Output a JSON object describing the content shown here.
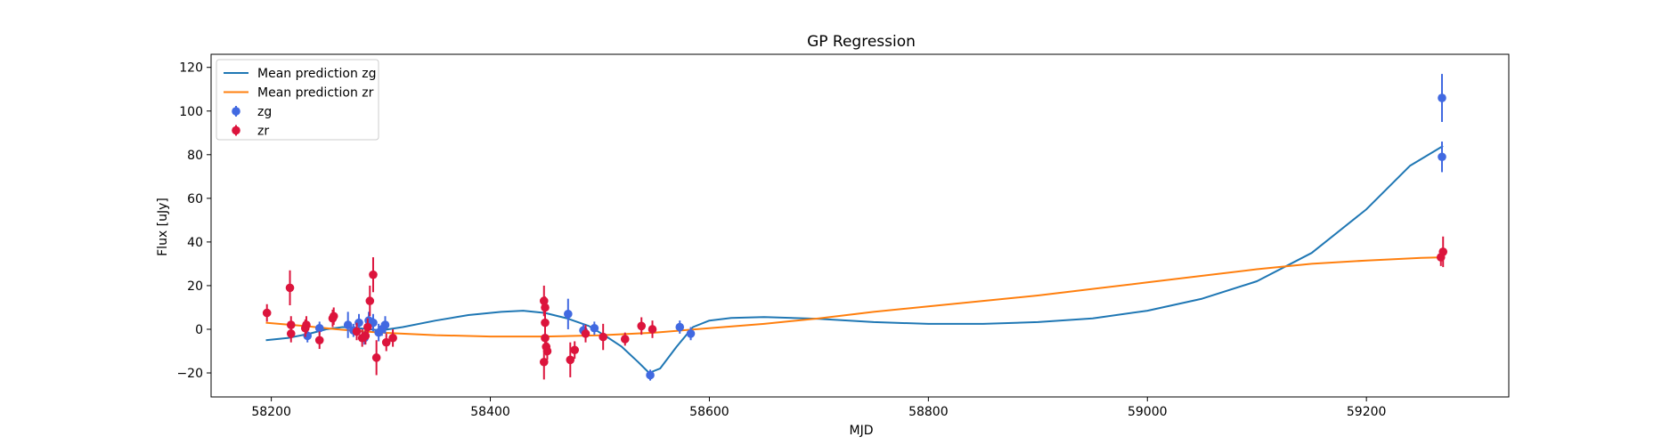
{
  "chart_data": {
    "type": "scatter",
    "title": "GP Regression",
    "xlabel": "MJD",
    "ylabel": "Flux [uJy]",
    "xlim": [
      58145,
      59330
    ],
    "ylim": [
      -31,
      126
    ],
    "x_ticks": [
      58200,
      58400,
      58600,
      58800,
      59000,
      59200
    ],
    "y_ticks": [
      -20,
      0,
      20,
      40,
      60,
      80,
      100,
      120
    ],
    "grid": false,
    "legend": {
      "location": "upper-left",
      "entries": [
        "Mean prediction zg",
        "Mean prediction zr",
        "zg",
        "zr"
      ]
    },
    "series": [
      {
        "name": "Mean prediction zg",
        "kind": "line",
        "color": "#1f77b4",
        "x": [
          58195,
          58215,
          58235,
          58250,
          58265,
          58280,
          58300,
          58320,
          58350,
          58380,
          58410,
          58430,
          58450,
          58470,
          58490,
          58505,
          58520,
          58535,
          58545,
          58555,
          58570,
          58585,
          58600,
          58620,
          58650,
          58700,
          58750,
          58800,
          58850,
          58900,
          58950,
          59000,
          59050,
          59100,
          59150,
          59200,
          59240,
          59270
        ],
        "y": [
          -5,
          -4,
          -2,
          0,
          1,
          0.5,
          -0.5,
          1,
          4,
          6.5,
          8,
          8.5,
          7.5,
          5,
          1.5,
          -3,
          -8,
          -15,
          -20,
          -18,
          -8,
          1,
          4,
          5.2,
          5.6,
          4.8,
          3.3,
          2.5,
          2.5,
          3.3,
          5,
          8.5,
          14,
          22,
          35,
          55,
          75,
          84
        ]
      },
      {
        "name": "Mean prediction zr",
        "kind": "line",
        "color": "#ff7f0e",
        "x": [
          58195,
          58230,
          58260,
          58300,
          58350,
          58400,
          58450,
          58500,
          58550,
          58600,
          58650,
          58700,
          58750,
          58800,
          58850,
          58900,
          58950,
          59000,
          59050,
          59100,
          59150,
          59200,
          59250,
          59270
        ],
        "y": [
          3,
          1.5,
          0,
          -1.5,
          -2.7,
          -3.3,
          -3.3,
          -2.8,
          -1.5,
          0.5,
          2.5,
          5,
          8,
          10.5,
          13,
          15.5,
          18.5,
          21.5,
          24.5,
          27.5,
          30,
          31.5,
          32.7,
          33
        ]
      },
      {
        "name": "zg",
        "kind": "errorbar",
        "color": "#4169e1",
        "points": [
          {
            "x": 58233,
            "y": -3,
            "err": 3
          },
          {
            "x": 58244,
            "y": 0.5,
            "err": 3
          },
          {
            "x": 58270,
            "y": 2,
            "err": 6
          },
          {
            "x": 58275,
            "y": -0.5,
            "err": 3
          },
          {
            "x": 58280,
            "y": 3,
            "err": 4
          },
          {
            "x": 58285,
            "y": -4,
            "err": 3
          },
          {
            "x": 58289,
            "y": 4,
            "err": 4
          },
          {
            "x": 58293,
            "y": 3,
            "err": 4
          },
          {
            "x": 58298,
            "y": -1.5,
            "err": 4
          },
          {
            "x": 58301,
            "y": 0,
            "err": 3
          },
          {
            "x": 58304,
            "y": 2,
            "err": 4
          },
          {
            "x": 58471,
            "y": 7,
            "err": 7
          },
          {
            "x": 58485,
            "y": -0.5,
            "err": 3
          },
          {
            "x": 58495,
            "y": 0.5,
            "err": 3
          },
          {
            "x": 58546,
            "y": -21,
            "err": 2.5
          },
          {
            "x": 58573,
            "y": 1,
            "err": 3
          },
          {
            "x": 58583,
            "y": -2,
            "err": 3
          },
          {
            "x": 59269,
            "y": 106,
            "err": 11
          },
          {
            "x": 59269,
            "y": 79,
            "err": 7
          }
        ]
      },
      {
        "name": "zr",
        "kind": "errorbar",
        "color": "#dc143c",
        "points": [
          {
            "x": 58196,
            "y": 7.5,
            "err": 4
          },
          {
            "x": 58217,
            "y": 19,
            "err": 8
          },
          {
            "x": 58218,
            "y": -2,
            "err": 4
          },
          {
            "x": 58218,
            "y": 2,
            "err": 4
          },
          {
            "x": 58231,
            "y": 0.5,
            "err": 4
          },
          {
            "x": 58232,
            "y": 2,
            "err": 4
          },
          {
            "x": 58244,
            "y": -5,
            "err": 4
          },
          {
            "x": 58256,
            "y": 5,
            "err": 4
          },
          {
            "x": 58257,
            "y": 6,
            "err": 4
          },
          {
            "x": 58278,
            "y": -1,
            "err": 4
          },
          {
            "x": 58283,
            "y": -4,
            "err": 4
          },
          {
            "x": 58286,
            "y": -3,
            "err": 4
          },
          {
            "x": 58288,
            "y": 1,
            "err": 4
          },
          {
            "x": 58290,
            "y": 13,
            "err": 7
          },
          {
            "x": 58293,
            "y": 25,
            "err": 8
          },
          {
            "x": 58296,
            "y": -13,
            "err": 8
          },
          {
            "x": 58305,
            "y": -6,
            "err": 4
          },
          {
            "x": 58311,
            "y": -4,
            "err": 4
          },
          {
            "x": 58449,
            "y": 13,
            "err": 7
          },
          {
            "x": 58450,
            "y": 10,
            "err": 5
          },
          {
            "x": 58450,
            "y": 3,
            "err": 4
          },
          {
            "x": 58450,
            "y": -4,
            "err": 4
          },
          {
            "x": 58451,
            "y": -8,
            "err": 4
          },
          {
            "x": 58452,
            "y": -10,
            "err": 4
          },
          {
            "x": 58449,
            "y": -15,
            "err": 8
          },
          {
            "x": 58473,
            "y": -14,
            "err": 8
          },
          {
            "x": 58477,
            "y": -9.5,
            "err": 4
          },
          {
            "x": 58487,
            "y": -2,
            "err": 4
          },
          {
            "x": 58503,
            "y": -3.5,
            "err": 6
          },
          {
            "x": 58523,
            "y": -4.5,
            "err": 3
          },
          {
            "x": 58538,
            "y": 1.5,
            "err": 4
          },
          {
            "x": 58548,
            "y": 0,
            "err": 4
          },
          {
            "x": 59268,
            "y": 33,
            "err": 4
          },
          {
            "x": 59270,
            "y": 35.5,
            "err": 7
          }
        ]
      }
    ]
  }
}
